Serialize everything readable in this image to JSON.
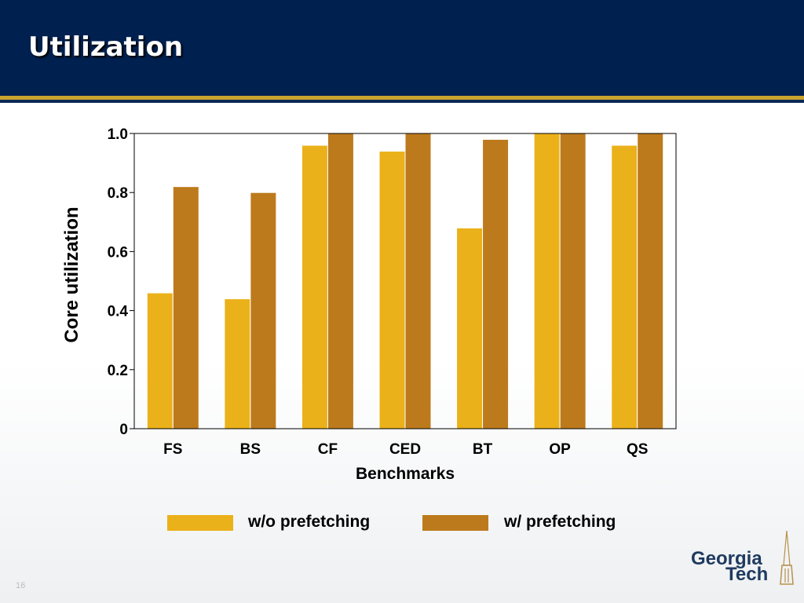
{
  "slide": {
    "title": "Utilization",
    "slide_number": "16",
    "logo_lines": [
      "Georgia",
      "Tech"
    ]
  },
  "colors": {
    "header_bg": "#00204f",
    "header_rule": "#c9a22e",
    "series_wo": "#ebb11a",
    "series_w": "#bd7a1c"
  },
  "chart_data": {
    "type": "bar",
    "xlabel": "Benchmarks",
    "ylabel": "Core utilization",
    "categories": [
      "FS",
      "BS",
      "CF",
      "CED",
      "BT",
      "OP",
      "QS"
    ],
    "series": [
      {
        "name": "w/o prefetching",
        "color": "#ebb11a",
        "values": [
          0.46,
          0.44,
          0.96,
          0.94,
          0.68,
          1.0,
          0.96
        ]
      },
      {
        "name": "w/ prefetching",
        "color": "#bd7a1c",
        "values": [
          0.82,
          0.8,
          1.0,
          1.0,
          0.98,
          1.0,
          1.0
        ]
      }
    ],
    "ylim": [
      0,
      1.0
    ],
    "yticks": [
      {
        "value": 0,
        "label": "0"
      },
      {
        "value": 0.2,
        "label": "0.2"
      },
      {
        "value": 0.4,
        "label": "0.4"
      },
      {
        "value": 0.6,
        "label": "0.6"
      },
      {
        "value": 0.8,
        "label": "0.8"
      },
      {
        "value": 1.0,
        "label": "1.0"
      }
    ],
    "grid": false,
    "legend": "bottom"
  }
}
